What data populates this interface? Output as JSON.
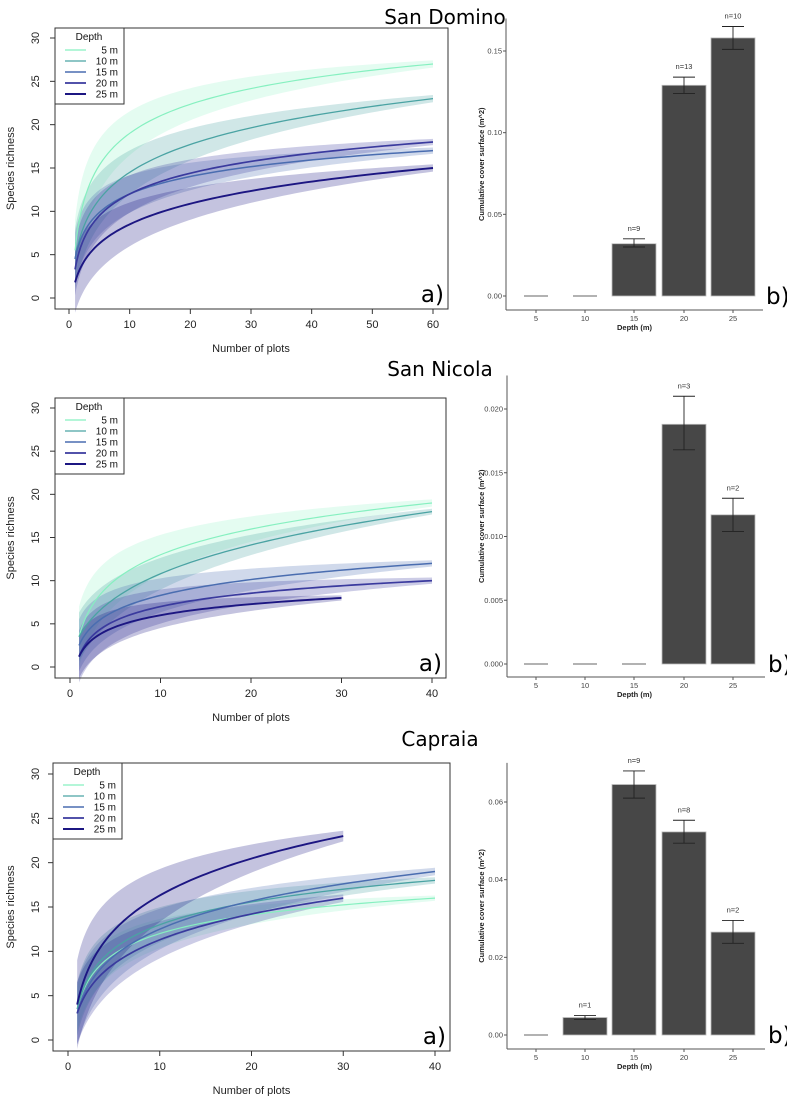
{
  "colors": {
    "5 m": "#86f0c0",
    "10 m": "#4aa3a3",
    "15 m": "#4a6db0",
    "20 m": "#3a3a9e",
    "25 m": "#1c1682",
    "bar": "#474747"
  },
  "chart_data": [
    {
      "site": "San Domino",
      "panel_label": "a)",
      "type": "line",
      "xlabel": "Number of plots",
      "ylabel": "Species richness",
      "xlim": [
        0,
        60
      ],
      "ylim": [
        0,
        30
      ],
      "xticks": [
        "0",
        "10",
        "20",
        "30",
        "40",
        "50",
        "60"
      ],
      "yticks": [
        "0",
        "5",
        "10",
        "15",
        "20",
        "25",
        "30"
      ],
      "legend_title": "Depth",
      "legend_position": "top-left",
      "series": [
        {
          "name": "5 m",
          "x_max": 60,
          "start": 5.5,
          "at_10": 19,
          "end": 27,
          "ci": 3.5
        },
        {
          "name": "10 m",
          "x_max": 60,
          "start": 4.5,
          "at_10": 14.5,
          "end": 23,
          "ci": 3.5
        },
        {
          "name": "15 m",
          "x_max": 60,
          "start": 4.5,
          "at_10": 12,
          "end": 17,
          "ci": 3
        },
        {
          "name": "20 m",
          "x_max": 60,
          "start": 3.3,
          "at_10": 12,
          "end": 18,
          "ci": 3
        },
        {
          "name": "25 m",
          "x_max": 60,
          "start": 1.8,
          "at_10": 8.5,
          "end": 15,
          "ci": 3.5
        }
      ]
    },
    {
      "site": "San Domino",
      "panel_label": "b)",
      "type": "bar",
      "xlabel": "Depth (m)",
      "ylabel": "Cumulative cover surface (m^2)",
      "ylim": [
        0,
        0.165
      ],
      "yticks": [
        "0.00",
        "0.05",
        "0.10",
        "0.15"
      ],
      "categories": [
        "5",
        "10",
        "15",
        "20",
        "25"
      ],
      "values": [
        0,
        0,
        0.032,
        0.129,
        0.158
      ],
      "err_low": [
        0,
        0,
        0.03,
        0.124,
        0.151
      ],
      "err_high": [
        0,
        0,
        0.035,
        0.134,
        0.165
      ],
      "n_labels": [
        "",
        "",
        "n=9",
        "n=13",
        "n=10"
      ]
    },
    {
      "site": "San Nicola",
      "panel_label": "a)",
      "type": "line",
      "xlabel": "Number of plots",
      "ylabel": "Species richness",
      "xlim": [
        0,
        40
      ],
      "ylim": [
        0,
        30
      ],
      "xticks": [
        "0",
        "10",
        "20",
        "30",
        "40"
      ],
      "yticks": [
        "0",
        "5",
        "10",
        "15",
        "20",
        "25",
        "30"
      ],
      "legend_title": "Depth",
      "legend_position": "top-left",
      "series": [
        {
          "name": "5 m",
          "x_max": 40,
          "start": 3.5,
          "at_10": 13,
          "end": 19,
          "ci": 3.5
        },
        {
          "name": "10 m",
          "x_max": 40,
          "start": 3.5,
          "at_10": 10.8,
          "end": 18,
          "ci": 2.8
        },
        {
          "name": "15 m",
          "x_max": 40,
          "start": 2.5,
          "at_10": 8.3,
          "end": 12,
          "ci": 3
        },
        {
          "name": "20 m",
          "x_max": 40,
          "start": 1.2,
          "at_10": 7,
          "end": 10,
          "ci": 3
        },
        {
          "name": "25 m",
          "x_max": 30,
          "start": 1.2,
          "at_10": 6,
          "end": 8,
          "ci": 2.5
        }
      ]
    },
    {
      "site": "San Nicola",
      "panel_label": "b)",
      "type": "bar",
      "xlabel": "Depth (m)",
      "ylabel": "Cumulative cover surface (m^2)",
      "ylim": [
        0,
        0.022
      ],
      "yticks": [
        "0.000",
        "0.005",
        "0.010",
        "0.015",
        "0.020"
      ],
      "categories": [
        "5",
        "10",
        "15",
        "20",
        "25"
      ],
      "values": [
        0,
        0,
        0,
        0.0188,
        0.0117
      ],
      "err_low": [
        0,
        0,
        0,
        0.0168,
        0.0104
      ],
      "err_high": [
        0,
        0,
        0,
        0.021,
        0.013
      ],
      "n_labels": [
        "",
        "",
        "",
        "n=3",
        "n=2"
      ]
    },
    {
      "site": "Capraia",
      "panel_label": "a)",
      "type": "line",
      "xlabel": "Number of plots",
      "ylabel": "Species richness",
      "xlim": [
        0,
        40
      ],
      "ylim": [
        0,
        30
      ],
      "xticks": [
        "0",
        "10",
        "20",
        "30",
        "40"
      ],
      "yticks": [
        "0",
        "5",
        "10",
        "15",
        "20",
        "25",
        "30"
      ],
      "legend_title": "Depth",
      "legend_position": "top-left",
      "series": [
        {
          "name": "5 m",
          "x_max": 40,
          "start": 3.5,
          "at_10": 12,
          "end": 16,
          "ci": 2.5
        },
        {
          "name": "10 m",
          "x_max": 40,
          "start": 3.5,
          "at_10": 13,
          "end": 18,
          "ci": 3
        },
        {
          "name": "15 m",
          "x_max": 40,
          "start": 3,
          "at_10": 12.5,
          "end": 19,
          "ci": 3.5
        },
        {
          "name": "20 m",
          "x_max": 30,
          "start": 3,
          "at_10": 11.3,
          "end": 16,
          "ci": 3.5
        },
        {
          "name": "25 m",
          "x_max": 30,
          "start": 4,
          "at_10": 16.3,
          "end": 23,
          "ci": 5
        }
      ]
    },
    {
      "site": "Capraia",
      "panel_label": "b)",
      "type": "bar",
      "xlabel": "Depth (m)",
      "ylabel": "Cumulative cover surface (m^2)",
      "ylim": [
        0,
        0.068
      ],
      "yticks": [
        "0.00",
        "0.02",
        "0.04",
        "0.06"
      ],
      "categories": [
        "5",
        "10",
        "15",
        "20",
        "25"
      ],
      "values": [
        0,
        0.0045,
        0.0645,
        0.0523,
        0.0265
      ],
      "err_low": [
        0,
        0.004,
        0.061,
        0.0494,
        0.0236
      ],
      "err_high": [
        0,
        0.005,
        0.068,
        0.0553,
        0.0295
      ],
      "n_labels": [
        "",
        "n=1",
        "n=9",
        "n=8",
        "n=2"
      ]
    }
  ]
}
